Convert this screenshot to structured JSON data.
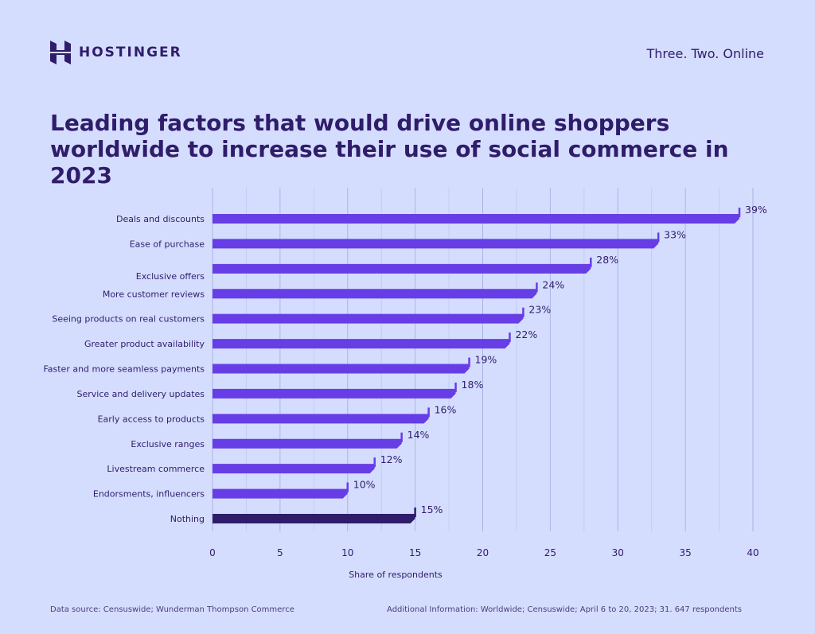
{
  "brand": {
    "name": "HOSTINGER",
    "tagline": "Three. Two. Online"
  },
  "colors": {
    "background": "#d5ddff",
    "bar": "#673de6",
    "highlight_bar": "#2f1c6a",
    "text": "#2f1c6a"
  },
  "chart_data": {
    "type": "bar",
    "orientation": "horizontal",
    "title": "Leading factors that would drive online shoppers worldwide to increase their use of social commerce in 2023",
    "xlabel": "Share of respondents",
    "xlim": [
      0,
      40
    ],
    "xticks": [
      "0",
      "5",
      "10",
      "15",
      "20",
      "25",
      "30",
      "35",
      "40"
    ],
    "grid": true,
    "categories": [
      "Deals and discounts",
      "Ease of purchase",
      "Exclusive offers",
      "More customer reviews",
      "Seeing products on real customers",
      "Greater product availability",
      "Faster and more seamless payments",
      "Service and delivery updates",
      "Early access to products",
      "Exclusive ranges",
      "Livestream commerce",
      "Endorsments, influencers",
      "Nothing"
    ],
    "values": [
      39,
      33,
      28,
      24,
      23,
      22,
      19,
      18,
      16,
      14,
      12,
      10,
      15
    ],
    "labels": [
      "39%",
      "33%",
      "28%",
      "24%",
      "23%",
      "22%",
      "19%",
      "18%",
      "16%",
      "14%",
      "12%",
      "10%",
      "15%"
    ]
  },
  "footer": {
    "source": "Data source: Censuswide; Wunderman Thompson Commerce",
    "info": "Additional Information: Worldwide; Censuswide; April 6 to 20, 2023; 31. 647 respondents"
  }
}
